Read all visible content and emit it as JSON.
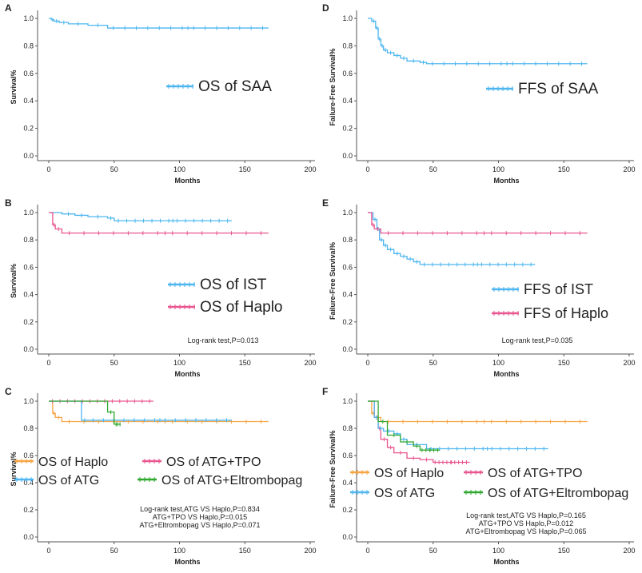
{
  "colors": {
    "blue": "#4db6f0",
    "pink": "#e8558f",
    "orange": "#f5a545",
    "green": "#2fa82f",
    "axis": "#555555",
    "text": "#222222"
  },
  "chart_data": [
    {
      "type": "line",
      "id": "A",
      "panel_label": "A",
      "xlabel": "Months",
      "ylabel": "Survival%",
      "xlim": [
        0,
        200
      ],
      "ylim": [
        0,
        1.0
      ],
      "xticks": [
        0,
        50,
        100,
        150,
        200
      ],
      "yticks": [
        0.0,
        0.2,
        0.4,
        0.6,
        0.8,
        1.0
      ],
      "legend_position": "middle-right",
      "series": [
        {
          "name": "OS of SAA",
          "color": "blue",
          "x": [
            0,
            2,
            4,
            8,
            15,
            30,
            45,
            168
          ],
          "y": [
            1.0,
            0.99,
            0.98,
            0.97,
            0.96,
            0.95,
            0.93,
            0.93
          ]
        }
      ],
      "annotations": []
    },
    {
      "type": "line",
      "id": "D",
      "panel_label": "D",
      "xlabel": "Months",
      "ylabel": "Failure-Free Survival%",
      "xlim": [
        0,
        200
      ],
      "ylim": [
        0,
        1.0
      ],
      "xticks": [
        0,
        50,
        100,
        150,
        200
      ],
      "yticks": [
        0.0,
        0.2,
        0.4,
        0.6,
        0.8,
        1.0
      ],
      "legend_position": "middle-right",
      "series": [
        {
          "name": "FFS of SAA",
          "color": "blue",
          "x": [
            0,
            3,
            6,
            8,
            10,
            12,
            15,
            20,
            25,
            30,
            40,
            45,
            168
          ],
          "y": [
            1.0,
            0.98,
            0.93,
            0.85,
            0.8,
            0.77,
            0.75,
            0.73,
            0.71,
            0.69,
            0.68,
            0.67,
            0.67
          ]
        }
      ],
      "annotations": []
    },
    {
      "type": "line",
      "id": "B",
      "panel_label": "B",
      "xlabel": "Months",
      "ylabel": "Survival%",
      "xlim": [
        0,
        200
      ],
      "ylim": [
        0,
        1.0
      ],
      "xticks": [
        0,
        50,
        100,
        150,
        200
      ],
      "yticks": [
        0.0,
        0.2,
        0.4,
        0.6,
        0.8,
        1.0
      ],
      "legend_position": "lower-right",
      "series": [
        {
          "name": "OS of IST",
          "color": "blue",
          "x": [
            0,
            10,
            20,
            30,
            45,
            50,
            140
          ],
          "y": [
            1.0,
            0.99,
            0.98,
            0.97,
            0.96,
            0.94,
            0.94
          ]
        },
        {
          "name": "OS of Haplo",
          "color": "pink",
          "x": [
            0,
            3,
            5,
            10,
            168
          ],
          "y": [
            1.0,
            0.91,
            0.88,
            0.85,
            0.85
          ]
        }
      ],
      "annotations": [
        "Log-rank test,P=0.013"
      ]
    },
    {
      "type": "line",
      "id": "E",
      "panel_label": "E",
      "xlabel": "Months",
      "ylabel": "Failure-Free Survival%",
      "xlim": [
        0,
        200
      ],
      "ylim": [
        0,
        1.0
      ],
      "xticks": [
        0,
        50,
        100,
        150,
        200
      ],
      "yticks": [
        0.0,
        0.2,
        0.4,
        0.6,
        0.8,
        1.0
      ],
      "legend_position": "lower-right",
      "series": [
        {
          "name": "FFS of IST",
          "color": "blue",
          "x": [
            0,
            4,
            7,
            9,
            12,
            15,
            20,
            25,
            30,
            35,
            40,
            128
          ],
          "y": [
            1.0,
            0.95,
            0.88,
            0.8,
            0.76,
            0.73,
            0.7,
            0.68,
            0.66,
            0.64,
            0.62,
            0.62
          ]
        },
        {
          "name": "FFS of Haplo",
          "color": "pink",
          "x": [
            0,
            3,
            5,
            10,
            168
          ],
          "y": [
            1.0,
            0.91,
            0.88,
            0.85,
            0.85
          ]
        }
      ],
      "annotations": [
        "Log-rank test,P=0.035"
      ]
    },
    {
      "type": "line",
      "id": "C",
      "panel_label": "C",
      "xlabel": "Months",
      "ylabel": "Survival%",
      "xlim": [
        0,
        200
      ],
      "ylim": [
        0,
        1.0
      ],
      "xticks": [
        0,
        50,
        100,
        150,
        200
      ],
      "yticks": [
        0.0,
        0.2,
        0.4,
        0.6,
        0.8,
        1.0
      ],
      "legend_position": "lower-left",
      "series": [
        {
          "name": "OS of Haplo",
          "color": "orange",
          "x": [
            0,
            3,
            5,
            10,
            168
          ],
          "y": [
            1.0,
            0.91,
            0.88,
            0.85,
            0.85
          ]
        },
        {
          "name": "OS of ATG+TPO",
          "color": "pink",
          "x": [
            0,
            80
          ],
          "y": [
            1.0,
            1.0
          ]
        },
        {
          "name": "OS of ATG",
          "color": "blue",
          "x": [
            0,
            25,
            30,
            140
          ],
          "y": [
            1.0,
            0.86,
            0.86,
            0.86
          ]
        },
        {
          "name": "OS of ATG+Eltrombopag",
          "color": "green",
          "x": [
            0,
            45,
            50,
            55
          ],
          "y": [
            1.0,
            0.92,
            0.83,
            0.83
          ]
        }
      ],
      "annotations": [
        "Log-rank test,ATG VS Haplo,P=0.834",
        "ATG+TPO VS Haplo,P=0.015",
        "ATG+Eltrombopag VS Haplo,P=0.071"
      ]
    },
    {
      "type": "line",
      "id": "F",
      "panel_label": "F",
      "xlabel": "Months",
      "ylabel": "Failure-Free Survival%",
      "xlim": [
        0,
        200
      ],
      "ylim": [
        0,
        1.0
      ],
      "xticks": [
        0,
        50,
        100,
        150,
        200
      ],
      "yticks": [
        0.0,
        0.2,
        0.4,
        0.6,
        0.8,
        1.0
      ],
      "legend_position": "lower-left",
      "series": [
        {
          "name": "OS of Haplo",
          "color": "orange",
          "x": [
            0,
            3,
            5,
            10,
            168
          ],
          "y": [
            1.0,
            0.91,
            0.88,
            0.85,
            0.85
          ]
        },
        {
          "name": "OS of ATG+TPO",
          "color": "pink",
          "x": [
            0,
            5,
            8,
            10,
            15,
            20,
            30,
            40,
            50,
            78
          ],
          "y": [
            1.0,
            0.88,
            0.8,
            0.72,
            0.66,
            0.62,
            0.58,
            0.57,
            0.55,
            0.55
          ]
        },
        {
          "name": "OS of ATG",
          "color": "blue",
          "x": [
            0,
            5,
            8,
            12,
            20,
            25,
            30,
            45,
            138
          ],
          "y": [
            1.0,
            0.88,
            0.8,
            0.78,
            0.76,
            0.72,
            0.68,
            0.65,
            0.65
          ]
        },
        {
          "name": "OS of ATG+Eltrombopag",
          "color": "green",
          "x": [
            0,
            8,
            15,
            25,
            35,
            40,
            55
          ],
          "y": [
            1.0,
            0.85,
            0.75,
            0.7,
            0.67,
            0.64,
            0.64
          ]
        }
      ],
      "annotations": [
        "Log-rank test,ATG VS Haplo,P=0.165",
        "ATG+TPO VS Haplo,P=0.012",
        "ATG+Eltrombopag VS Haplo,P=0.065"
      ]
    }
  ]
}
